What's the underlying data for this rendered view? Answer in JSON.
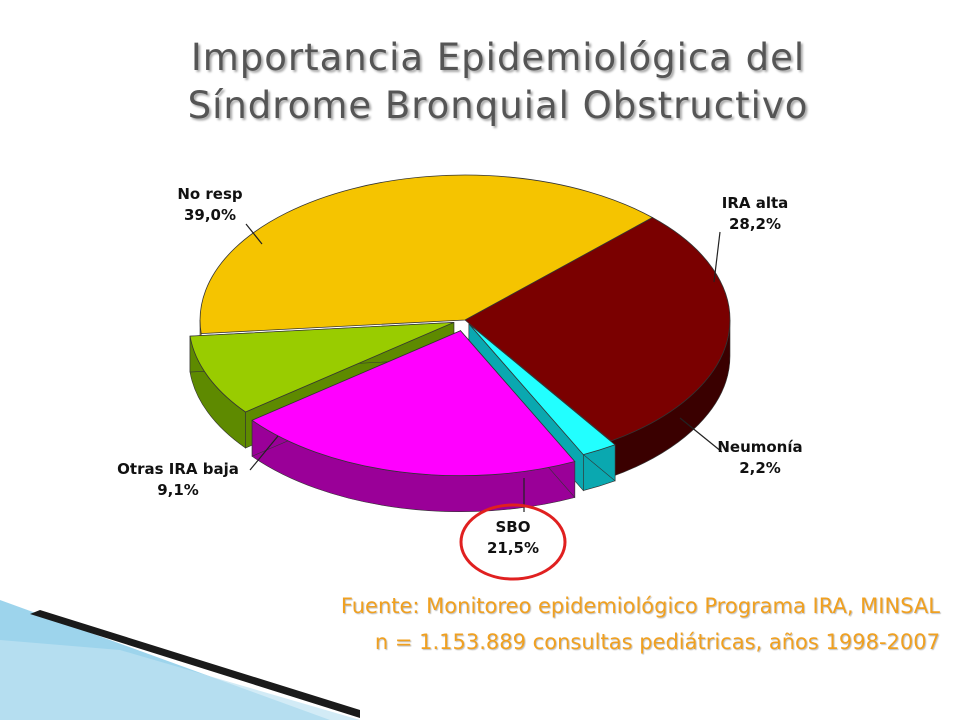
{
  "slide": {
    "title_line_1": "Importancia Epidemiológica del",
    "title_line_2": "Síndrome Bronquial Obstructivo",
    "footer_source": "Fuente: Monitoreo epidemiológico Programa IRA, MINSAL",
    "footer_sample": "n = 1.153.889 consultas pediátricas, años 1998-2007"
  },
  "colors": {
    "title": "#555555",
    "footer": "#f0a020",
    "highlight_circle": "#e02020",
    "decor_blue": "#7cc6e6"
  },
  "chart_data": {
    "type": "pie",
    "title": "",
    "highlighted": "SBO",
    "slices": [
      {
        "name": "IRA alta",
        "label": "28,2%",
        "value": 28.2,
        "color": "#7a0000",
        "side": "#3a0000"
      },
      {
        "name": "Neumonía",
        "label": "2,2%",
        "value": 2.2,
        "color": "#22ffff",
        "side": "#0aa8b0"
      },
      {
        "name": "SBO",
        "label": "21,5%",
        "value": 21.5,
        "color": "#ff00ff",
        "side": "#9a0098"
      },
      {
        "name": "Otras IRA baja",
        "label": "9,1%",
        "value": 9.1,
        "color": "#99cc00",
        "side": "#5e8a00"
      },
      {
        "name": "No resp",
        "label": "39,0%",
        "value": 39.0,
        "color": "#f5c400",
        "side": "#c89600"
      }
    ]
  }
}
